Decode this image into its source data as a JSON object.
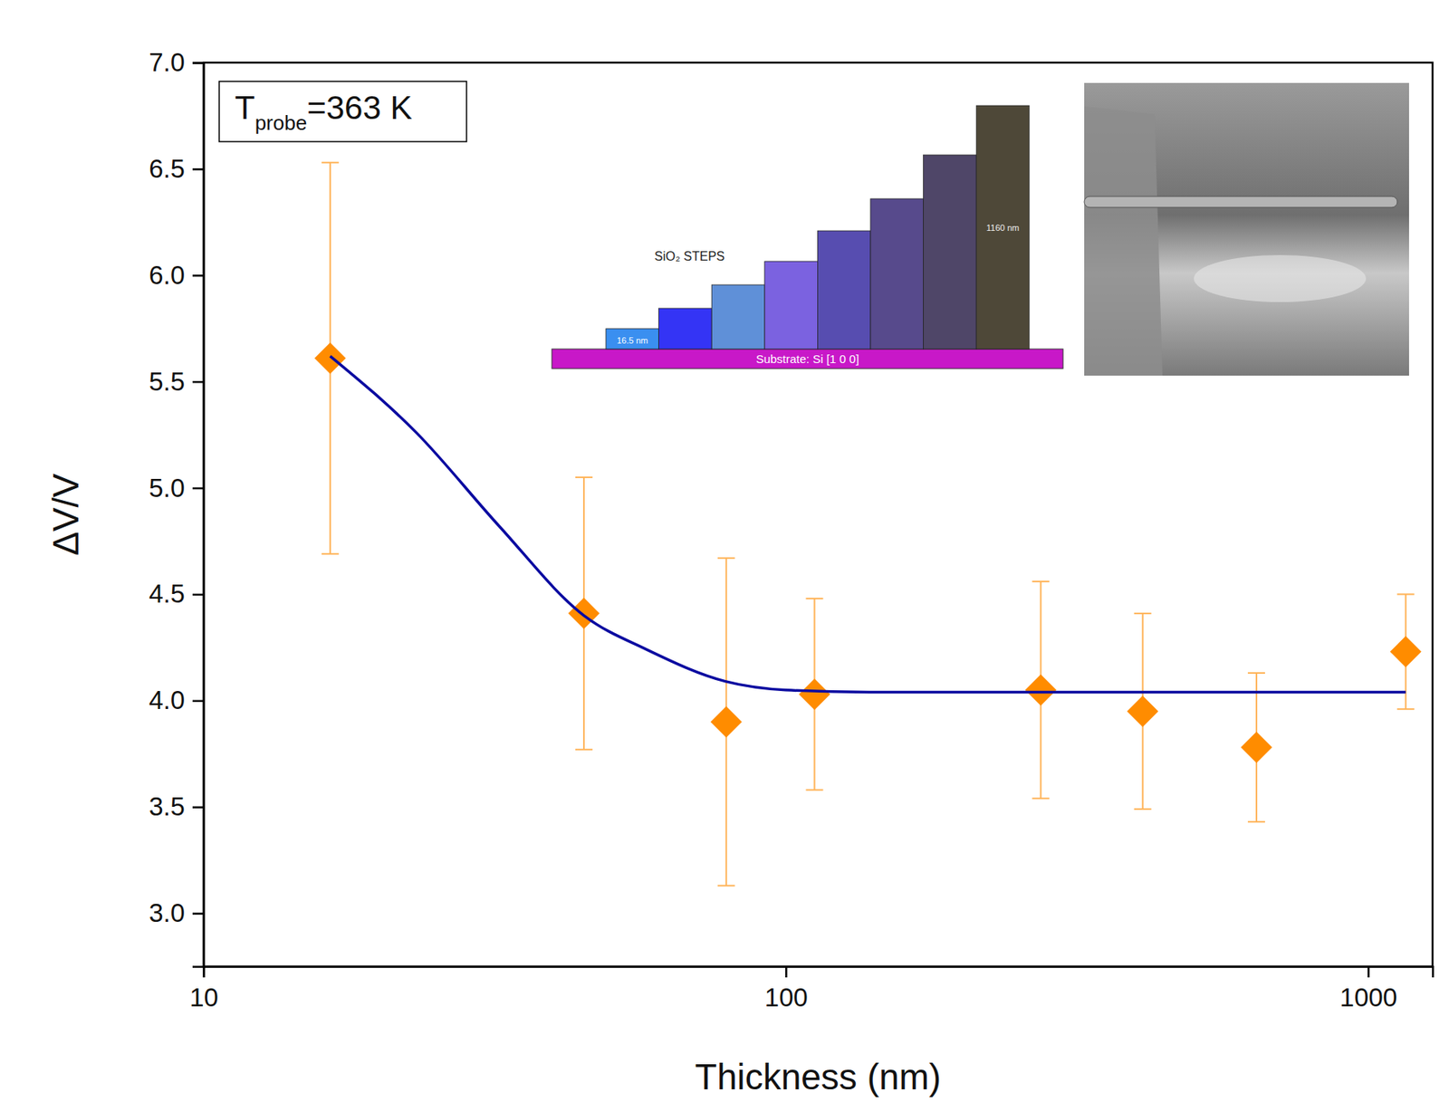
{
  "chart_data": {
    "type": "scatter",
    "x_label": "Thickness (nm)",
    "y_label": "ΔV/V",
    "log": "x",
    "xlim": [
      10,
      1290
    ],
    "ylim": [
      2.75,
      7.0
    ],
    "xticks": [
      10,
      100,
      1000
    ],
    "yticks": [
      {
        "value": 3.0,
        "label": "3.0"
      },
      {
        "value": 3.5,
        "label": "3.5"
      },
      {
        "value": 4.0,
        "label": "4.0"
      },
      {
        "value": 4.5,
        "label": "4.5"
      },
      {
        "value": 5.0,
        "label": "5.0"
      },
      {
        "value": 5.5,
        "label": "5.5"
      },
      {
        "value": 6.0,
        "label": "6.0"
      },
      {
        "value": 6.5,
        "label": "6.5"
      },
      {
        "value": 7.0,
        "label": "7.0"
      }
    ],
    "grid": false,
    "series": [
      {
        "type": "scatter",
        "color": "#ff8c00",
        "marker": "diamond",
        "x": [
          16.5,
          45,
          79,
          112,
          274,
          410,
          643,
          1160
        ],
        "values": [
          5.61,
          4.41,
          3.9,
          4.03,
          4.05,
          3.95,
          3.78,
          4.23
        ],
        "errors": [
          0.92,
          0.64,
          0.77,
          0.45,
          0.51,
          0.46,
          0.35,
          0.27
        ]
      },
      {
        "type": "line",
        "color": "#0a0aa0",
        "line_style": "solid",
        "x": [
          16.5,
          23.2,
          32.2,
          45,
          57.7,
          78.9,
          100,
          139,
          300,
          1160
        ],
        "values": [
          5.62,
          5.26,
          4.82,
          4.4,
          4.24,
          4.09,
          4.05,
          4.04,
          4.04,
          4.04
        ]
      }
    ],
    "annotation": {
      "text": "T",
      "subscript": "probe",
      "suffix": "=363 K"
    },
    "inset": {
      "title": "SiO₂ STEPS",
      "first_label": "16.5 nm",
      "last_label": "1160 nm",
      "substrate": "Substrate: Si [1 0 0]",
      "colors": [
        "#3a8ff0",
        "#3434f5",
        "#5f90d8",
        "#7b62e0",
        "#574db0",
        "#574a8c",
        "#4f4668",
        "#4e4838"
      ]
    }
  }
}
